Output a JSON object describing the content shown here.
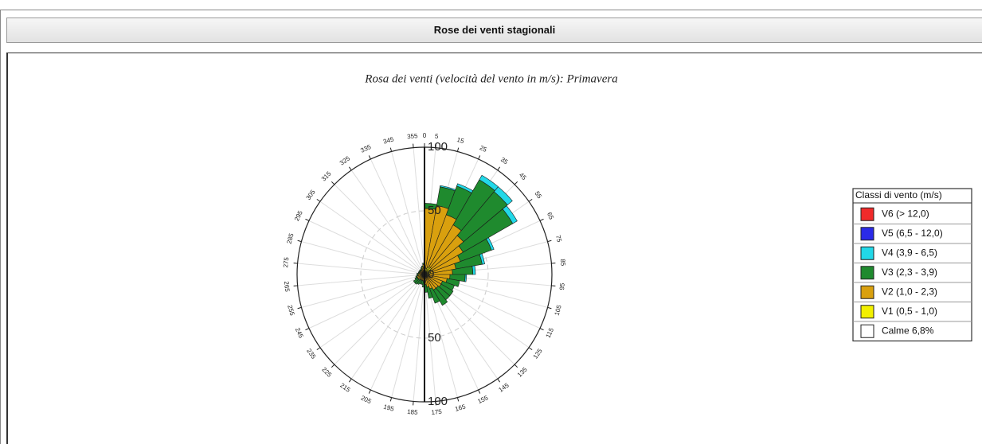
{
  "header": {
    "title": "Rose dei venti stagionali"
  },
  "chart_data": {
    "type": "windrose",
    "title": "Rosa dei venti (velocità del vento in m/s): Primavera",
    "x": [
      5,
      15,
      25,
      35,
      45,
      55,
      65,
      75,
      85,
      95,
      105,
      115,
      125,
      135,
      145,
      155,
      165,
      175,
      185,
      195,
      205,
      215,
      225,
      235,
      245,
      255,
      265,
      275,
      285,
      295,
      305,
      315,
      325,
      335,
      345,
      355
    ],
    "xticks": [
      0,
      5,
      15,
      25,
      35,
      45,
      55,
      65,
      75,
      85,
      95,
      105,
      115,
      125,
      135,
      145,
      155,
      165,
      175,
      185,
      195,
      205,
      215,
      225,
      235,
      245,
      255,
      265,
      275,
      285,
      295,
      305,
      315,
      325,
      335,
      345,
      355
    ],
    "rlim": [
      0,
      100
    ],
    "rticks": [
      0,
      50,
      100
    ],
    "legend_title": "Classi di vento (m/s)",
    "calm_label": "Calme 6,8%",
    "series": [
      {
        "name": "V1 (0,5 - 1,0)",
        "color": "#f2f000",
        "values": [
          4,
          5,
          6,
          7,
          7,
          6,
          5,
          5,
          4,
          4,
          3,
          3,
          3,
          3,
          3,
          3,
          2,
          2,
          2,
          2,
          2,
          2,
          2,
          2,
          2,
          2,
          2,
          2,
          2,
          2,
          2,
          2,
          2,
          2,
          3,
          3
        ]
      },
      {
        "name": "V2 (1,0 - 2,3)",
        "color": "#d9a00e",
        "values": [
          48,
          50,
          44,
          38,
          33,
          29,
          25,
          20,
          18,
          16,
          15,
          12,
          12,
          11,
          11,
          9,
          8,
          6,
          4,
          3,
          3,
          3,
          3,
          4,
          4,
          4,
          3,
          3,
          2,
          2,
          2,
          2,
          2,
          3,
          3,
          5
        ]
      },
      {
        "name": "V3 (2,3 - 3,9)",
        "color": "#1f8a2e",
        "values": [
          4,
          15,
          24,
          41,
          45,
          45,
          26,
          21,
          16,
          12,
          10,
          10,
          11,
          12,
          14,
          12,
          9,
          6,
          4,
          3,
          3,
          4,
          5,
          4,
          2,
          1,
          1,
          1,
          1,
          1,
          1,
          1,
          1,
          1,
          1,
          1
        ]
      },
      {
        "name": "V4 (3,9 - 6,5)",
        "color": "#22d8e8",
        "values": [
          0,
          1,
          2,
          4,
          5,
          4,
          2,
          2,
          2,
          1,
          0,
          0,
          0,
          0,
          0,
          0,
          0,
          0,
          0,
          0,
          0,
          0,
          0,
          0,
          0,
          0,
          0,
          0,
          0,
          0,
          0,
          0,
          0,
          0,
          0,
          0
        ]
      },
      {
        "name": "V5 (6,5 - 12,0)",
        "color": "#2a2ae8",
        "values": [
          0,
          0,
          0,
          0,
          0,
          0,
          0,
          0,
          0,
          0,
          0,
          0,
          0,
          0,
          0,
          0,
          0,
          0,
          0,
          0,
          0,
          0,
          0,
          0,
          0,
          0,
          0,
          0,
          0,
          0,
          0,
          0,
          0,
          0,
          0,
          0
        ]
      },
      {
        "name": "V6 (> 12,0)",
        "color": "#f02a2a",
        "values": [
          0,
          0,
          0,
          0,
          0,
          0,
          0,
          0,
          0,
          0,
          0,
          0,
          0,
          0,
          0,
          0,
          0,
          0,
          0,
          0,
          0,
          0,
          0,
          0,
          0,
          0,
          0,
          0,
          0,
          0,
          0,
          0,
          0,
          0,
          0,
          0
        ]
      }
    ]
  }
}
